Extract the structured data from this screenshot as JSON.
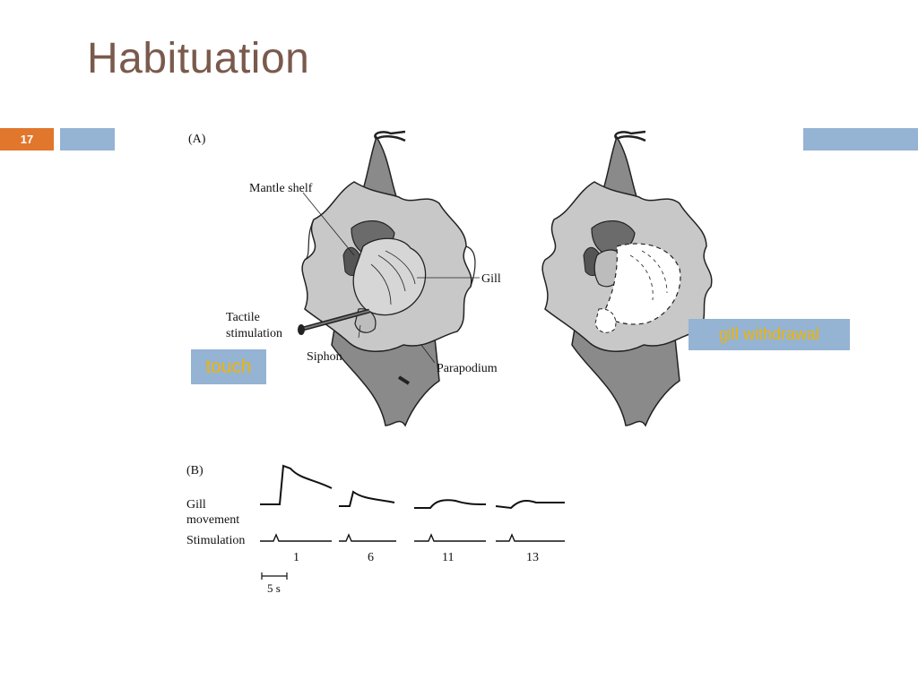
{
  "slide": {
    "title": "Habituation",
    "number": "17"
  },
  "figure": {
    "panel_a": {
      "label": "(A)",
      "labels": {
        "mantle_shelf": "Mantle shelf",
        "gill": "Gill",
        "tactile_line1": "Tactile",
        "tactile_line2": "stimulation",
        "siphon": "Siphon",
        "parapodium": "Parapodium"
      }
    },
    "panel_b": {
      "label": "(B)",
      "gill_line1": "Gill",
      "gill_line2": "movement",
      "stimulation": "Stimulation",
      "trials": [
        "1",
        "6",
        "11",
        "13"
      ],
      "scale": "5 s"
    }
  },
  "callouts": {
    "touch": "touch",
    "gill_withdrawal": "gill withdrawal"
  },
  "colors": {
    "title": "#7a5a4c",
    "badge": "#e1762d",
    "accent_bar": "#95b3d3",
    "callout_text": "#f0b400"
  }
}
